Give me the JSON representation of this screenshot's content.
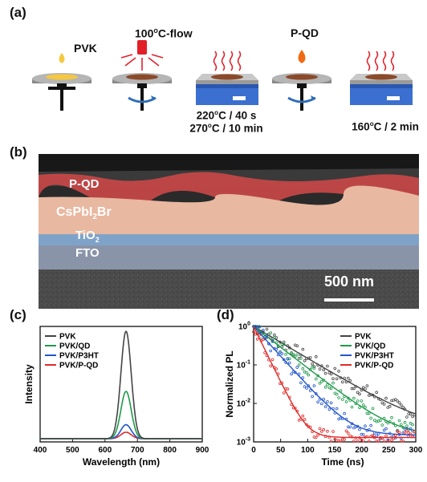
{
  "panels": {
    "a": {
      "label": "(a)",
      "steps": {
        "pvk": "PVK",
        "flow": "100",
        "flow_sup": "o",
        "flow_rest": "C-flow",
        "pqd": "P-QD"
      },
      "conditions": {
        "anneal1_line1_pre": "220",
        "anneal1_line1_sup": "o",
        "anneal1_line1_post": "C / 40 s",
        "anneal1_line2_pre": "270",
        "anneal1_line2_sup": "o",
        "anneal1_line2_post": "C / 10 min",
        "anneal2_pre": "160",
        "anneal2_sup": "o",
        "anneal2_post": "C / 2 min"
      }
    },
    "b": {
      "label": "(b)",
      "layers": {
        "pqd": "P-QD",
        "cs_pre": "CsPbI",
        "cs_sub": "2",
        "cs_post": "Br",
        "tio_pre": "TiO",
        "tio_sub": "2",
        "fto": "FTO"
      },
      "scalebar": "500 nm"
    },
    "c": {
      "label": "(c)"
    },
    "d": {
      "label": "(d)"
    }
  },
  "colors": {
    "pvk": "#444444",
    "pvk_qd": "#1e9a4a",
    "pvk_p3ht": "#2255cc",
    "pvk_pqd": "#e02a2a",
    "hotplate": "#3b6fd0",
    "droplet_pvk": "#f5c842",
    "droplet_pqd": "#ef6a12",
    "air_gun": "#e2202a"
  },
  "chart_data": [
    {
      "type": "line",
      "xlabel": "Wavelength (nm)",
      "ylabel": "Intensity",
      "xlim": [
        400,
        900
      ],
      "xticks": [
        "400",
        "500",
        "600",
        "700",
        "800",
        "900"
      ],
      "legend_position": "top-left",
      "peak_nm": 665,
      "series": [
        {
          "name": "PVK",
          "color": "#444444",
          "peak": 1.0
        },
        {
          "name": "PVK/QD",
          "color": "#1e9a4a",
          "peak": 0.44
        },
        {
          "name": "PVK/P3HT",
          "color": "#2255cc",
          "peak": 0.13
        },
        {
          "name": "PVK/P-QD",
          "color": "#e02a2a",
          "peak": 0.06
        }
      ]
    },
    {
      "type": "scatter",
      "xlabel": "Time (ns)",
      "ylabel": "Normalized PL",
      "xlim": [
        0,
        300
      ],
      "ylim": [
        0.001,
        1
      ],
      "yscale": "log",
      "xticks": [
        "0",
        "50",
        "100",
        "150",
        "200",
        "250",
        "300"
      ],
      "yticks": [
        {
          "base": "10",
          "exp": "0"
        },
        {
          "base": "10",
          "exp": "-1"
        },
        {
          "base": "10",
          "exp": "-2"
        },
        {
          "base": "10",
          "exp": "-3"
        }
      ],
      "legend_position": "top-right",
      "series": [
        {
          "name": "PVK",
          "color": "#444444",
          "tau_ns": 52,
          "floor": 0.0022
        },
        {
          "name": "PVK/QD",
          "color": "#1e9a4a",
          "tau_ns": 40,
          "floor": 0.0014
        },
        {
          "name": "PVK/P3HT",
          "color": "#2255cc",
          "tau_ns": 28,
          "floor": 0.0015
        },
        {
          "name": "PVK/P-QD",
          "color": "#e02a2a",
          "tau_ns": 15,
          "floor": 0.0013
        }
      ]
    }
  ]
}
